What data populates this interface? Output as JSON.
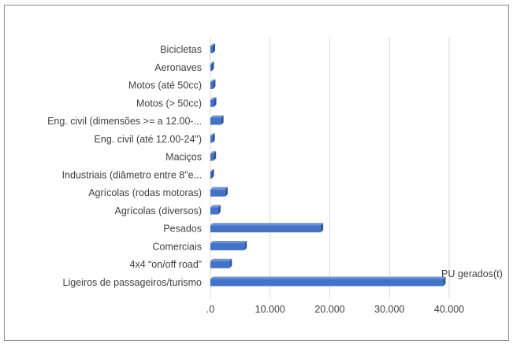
{
  "chart_data": {
    "type": "bar",
    "orientation": "horizontal",
    "categories": [
      "Ligeiros de passageiros/turismo",
      "4x4 “on/off road”",
      "Comerciais",
      "Pesados",
      "Agrícolas (diversos)",
      "Agrícolas (rodas motoras)",
      "Industriais (diâmetro entre 8\"e...",
      "Maciços",
      "Eng. civil (até 12.00-24\")",
      "Eng. civil (dimensões >= a 12.00-...",
      "Motos (> 50cc)",
      "Motos (até 50cc)",
      "Aeronaves",
      "Bicicletas"
    ],
    "series": [
      {
        "name": "PU gerados(t)",
        "values": [
          39000,
          3200,
          5700,
          18500,
          1300,
          2500,
          150,
          550,
          350,
          1800,
          600,
          450,
          100,
          400
        ],
        "color": "#4472C4"
      }
    ],
    "x_tick_labels": [
      ".0",
      "10.000",
      "20.000",
      "30.000",
      "40.000"
    ],
    "xlim": [
      0,
      40000
    ],
    "grid": "vertical",
    "bar_style": "3d"
  }
}
